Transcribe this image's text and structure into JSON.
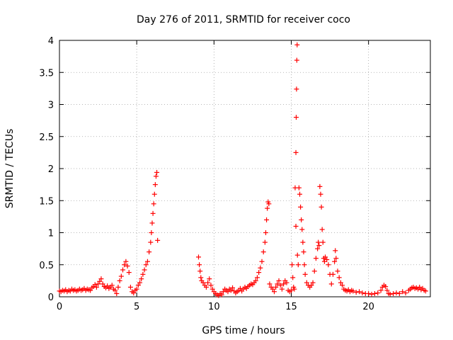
{
  "chart_data": {
    "type": "scatter",
    "title": "Day 276 of 2011, SRMTID for receiver coco",
    "xlabel": "GPS time / hours",
    "ylabel": "SRMTID / TECUs",
    "xlim": [
      0,
      24
    ],
    "ylim": [
      0,
      4
    ],
    "grid": true,
    "marker": "+",
    "color": "#ff0000",
    "xticks": [
      0,
      5,
      10,
      15,
      20
    ],
    "xtick_labels": [
      "0",
      "5",
      "10",
      "15",
      "20"
    ],
    "yticks": [
      0,
      0.5,
      1,
      1.5,
      2,
      2.5,
      3,
      3.5,
      4
    ],
    "ytick_labels": [
      "0",
      "0.5",
      "1",
      "1.5",
      "2",
      "2.5",
      "3",
      "3.5",
      "4"
    ],
    "series": [
      {
        "name": "SRMTID",
        "points": [
          [
            0.0,
            0.09
          ],
          [
            0.1,
            0.08
          ],
          [
            0.2,
            0.1
          ],
          [
            0.3,
            0.09
          ],
          [
            0.4,
            0.11
          ],
          [
            0.5,
            0.08
          ],
          [
            0.6,
            0.1
          ],
          [
            0.7,
            0.09
          ],
          [
            0.8,
            0.12
          ],
          [
            0.9,
            0.1
          ],
          [
            1.0,
            0.11
          ],
          [
            1.1,
            0.09
          ],
          [
            1.2,
            0.1
          ],
          [
            1.3,
            0.12
          ],
          [
            1.4,
            0.1
          ],
          [
            1.5,
            0.11
          ],
          [
            1.6,
            0.13
          ],
          [
            1.7,
            0.1
          ],
          [
            1.8,
            0.12
          ],
          [
            1.9,
            0.11
          ],
          [
            2.0,
            0.1
          ],
          [
            2.1,
            0.14
          ],
          [
            2.2,
            0.16
          ],
          [
            2.3,
            0.19
          ],
          [
            2.4,
            0.15
          ],
          [
            2.5,
            0.2
          ],
          [
            2.6,
            0.24
          ],
          [
            2.7,
            0.28
          ],
          [
            2.8,
            0.2
          ],
          [
            2.9,
            0.16
          ],
          [
            3.0,
            0.14
          ],
          [
            3.1,
            0.17
          ],
          [
            3.2,
            0.13
          ],
          [
            3.3,
            0.15
          ],
          [
            3.4,
            0.18
          ],
          [
            3.5,
            0.12
          ],
          [
            3.6,
            0.1
          ],
          [
            3.7,
            0.05
          ],
          [
            3.8,
            0.15
          ],
          [
            3.9,
            0.25
          ],
          [
            4.0,
            0.32
          ],
          [
            4.1,
            0.42
          ],
          [
            4.2,
            0.5
          ],
          [
            4.3,
            0.55
          ],
          [
            4.4,
            0.48
          ],
          [
            4.5,
            0.38
          ],
          [
            4.6,
            0.15
          ],
          [
            4.7,
            0.08
          ],
          [
            4.8,
            0.06
          ],
          [
            4.9,
            0.1
          ],
          [
            5.0,
            0.12
          ],
          [
            5.1,
            0.18
          ],
          [
            5.2,
            0.22
          ],
          [
            5.3,
            0.28
          ],
          [
            5.4,
            0.35
          ],
          [
            5.5,
            0.42
          ],
          [
            5.6,
            0.5
          ],
          [
            5.7,
            0.55
          ],
          [
            5.8,
            0.7
          ],
          [
            5.9,
            0.85
          ],
          [
            5.95,
            1.0
          ],
          [
            6.0,
            1.15
          ],
          [
            6.05,
            1.3
          ],
          [
            6.1,
            1.45
          ],
          [
            6.15,
            1.6
          ],
          [
            6.2,
            1.75
          ],
          [
            6.25,
            1.88
          ],
          [
            6.3,
            1.94
          ],
          [
            6.35,
            0.88
          ],
          [
            9.0,
            0.62
          ],
          [
            9.05,
            0.5
          ],
          [
            9.1,
            0.4
          ],
          [
            9.15,
            0.3
          ],
          [
            9.2,
            0.25
          ],
          [
            9.3,
            0.22
          ],
          [
            9.4,
            0.18
          ],
          [
            9.5,
            0.15
          ],
          [
            9.6,
            0.22
          ],
          [
            9.7,
            0.28
          ],
          [
            9.8,
            0.18
          ],
          [
            9.9,
            0.12
          ],
          [
            10.0,
            0.08
          ],
          [
            10.1,
            0.05
          ],
          [
            10.2,
            0.03
          ],
          [
            10.3,
            0.02
          ],
          [
            10.4,
            0.05
          ],
          [
            10.5,
            0.03
          ],
          [
            10.6,
            0.08
          ],
          [
            10.7,
            0.12
          ],
          [
            10.8,
            0.1
          ],
          [
            10.9,
            0.08
          ],
          [
            11.0,
            0.12
          ],
          [
            11.1,
            0.1
          ],
          [
            11.2,
            0.14
          ],
          [
            11.3,
            0.09
          ],
          [
            11.4,
            0.06
          ],
          [
            11.5,
            0.08
          ],
          [
            11.6,
            0.1
          ],
          [
            11.7,
            0.13
          ],
          [
            11.8,
            0.09
          ],
          [
            11.9,
            0.12
          ],
          [
            12.0,
            0.15
          ],
          [
            12.1,
            0.13
          ],
          [
            12.2,
            0.16
          ],
          [
            12.3,
            0.18
          ],
          [
            12.4,
            0.2
          ],
          [
            12.5,
            0.19
          ],
          [
            12.6,
            0.22
          ],
          [
            12.7,
            0.25
          ],
          [
            12.8,
            0.3
          ],
          [
            12.9,
            0.38
          ],
          [
            13.0,
            0.45
          ],
          [
            13.1,
            0.55
          ],
          [
            13.2,
            0.7
          ],
          [
            13.3,
            0.85
          ],
          [
            13.35,
            1.0
          ],
          [
            13.4,
            1.2
          ],
          [
            13.45,
            1.38
          ],
          [
            13.5,
            1.48
          ],
          [
            13.55,
            1.45
          ],
          [
            13.6,
            0.2
          ],
          [
            13.7,
            0.15
          ],
          [
            13.8,
            0.12
          ],
          [
            13.9,
            0.08
          ],
          [
            14.0,
            0.15
          ],
          [
            14.1,
            0.2
          ],
          [
            14.2,
            0.25
          ],
          [
            14.3,
            0.18
          ],
          [
            14.4,
            0.12
          ],
          [
            14.5,
            0.2
          ],
          [
            14.6,
            0.25
          ],
          [
            14.7,
            0.22
          ],
          [
            14.8,
            0.1
          ],
          [
            14.9,
            0.08
          ],
          [
            15.0,
            0.1
          ],
          [
            15.05,
            0.5
          ],
          [
            15.1,
            0.3
          ],
          [
            15.15,
            0.15
          ],
          [
            15.2,
            0.12
          ],
          [
            15.25,
            1.7
          ],
          [
            15.3,
            1.1
          ],
          [
            15.3,
            2.25
          ],
          [
            15.32,
            2.8
          ],
          [
            15.34,
            3.24
          ],
          [
            15.36,
            3.69
          ],
          [
            15.38,
            3.93
          ],
          [
            15.4,
            0.65
          ],
          [
            15.45,
            0.5
          ],
          [
            15.5,
            1.7
          ],
          [
            15.55,
            1.6
          ],
          [
            15.6,
            1.4
          ],
          [
            15.65,
            1.2
          ],
          [
            15.7,
            1.05
          ],
          [
            15.75,
            0.85
          ],
          [
            15.8,
            0.7
          ],
          [
            15.85,
            0.5
          ],
          [
            15.9,
            0.35
          ],
          [
            16.0,
            0.22
          ],
          [
            16.1,
            0.18
          ],
          [
            16.2,
            0.15
          ],
          [
            16.3,
            0.18
          ],
          [
            16.4,
            0.22
          ],
          [
            16.5,
            0.4
          ],
          [
            16.6,
            0.6
          ],
          [
            16.7,
            0.75
          ],
          [
            16.75,
            0.85
          ],
          [
            16.8,
            0.8
          ],
          [
            16.85,
            1.72
          ],
          [
            16.9,
            1.6
          ],
          [
            16.95,
            1.4
          ],
          [
            17.0,
            1.05
          ],
          [
            17.05,
            0.85
          ],
          [
            17.1,
            0.6
          ],
          [
            17.15,
            0.55
          ],
          [
            17.2,
            0.62
          ],
          [
            17.3,
            0.58
          ],
          [
            17.4,
            0.5
          ],
          [
            17.5,
            0.35
          ],
          [
            17.6,
            0.2
          ],
          [
            17.7,
            0.35
          ],
          [
            17.8,
            0.55
          ],
          [
            17.85,
            0.72
          ],
          [
            17.9,
            0.6
          ],
          [
            18.0,
            0.4
          ],
          [
            18.1,
            0.3
          ],
          [
            18.2,
            0.22
          ],
          [
            18.3,
            0.18
          ],
          [
            18.4,
            0.12
          ],
          [
            18.5,
            0.1
          ],
          [
            18.6,
            0.09
          ],
          [
            18.7,
            0.11
          ],
          [
            18.8,
            0.08
          ],
          [
            18.9,
            0.1
          ],
          [
            19.0,
            0.09
          ],
          [
            19.2,
            0.07
          ],
          [
            19.4,
            0.08
          ],
          [
            19.6,
            0.06
          ],
          [
            19.8,
            0.05
          ],
          [
            20.0,
            0.05
          ],
          [
            20.2,
            0.04
          ],
          [
            20.4,
            0.05
          ],
          [
            20.6,
            0.06
          ],
          [
            20.8,
            0.1
          ],
          [
            20.9,
            0.15
          ],
          [
            21.0,
            0.18
          ],
          [
            21.1,
            0.16
          ],
          [
            21.2,
            0.1
          ],
          [
            21.3,
            0.05
          ],
          [
            21.4,
            0.04
          ],
          [
            21.6,
            0.05
          ],
          [
            21.8,
            0.06
          ],
          [
            22.0,
            0.05
          ],
          [
            22.2,
            0.08
          ],
          [
            22.4,
            0.06
          ],
          [
            22.6,
            0.1
          ],
          [
            22.7,
            0.12
          ],
          [
            22.8,
            0.14
          ],
          [
            22.9,
            0.15
          ],
          [
            23.0,
            0.13
          ],
          [
            23.1,
            0.14
          ],
          [
            23.2,
            0.12
          ],
          [
            23.3,
            0.15
          ],
          [
            23.4,
            0.11
          ],
          [
            23.5,
            0.13
          ],
          [
            23.6,
            0.1
          ],
          [
            23.7,
            0.09
          ]
        ]
      }
    ]
  }
}
